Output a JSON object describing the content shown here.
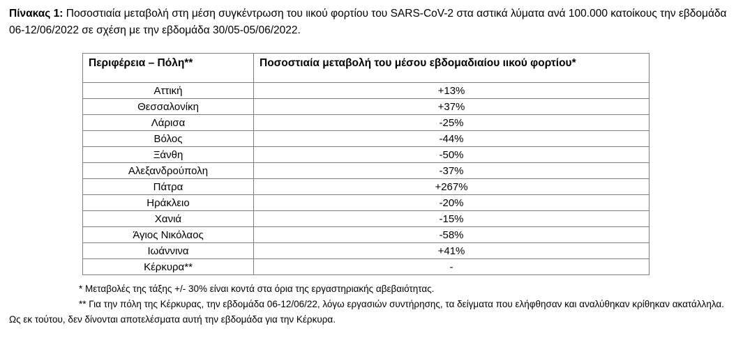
{
  "title": {
    "label": "Πίνακας 1:",
    "text": " Ποσοστιαία μεταβολή στη μέση συγκέντρωση του ιικού φορτίου του SARS-CoV-2 στα αστικά λύματα ανά 100.000 κατοίκους την εβδομάδα 06-12/06/2022 σε σχέση με την εβδομάδα 30/05-05/06/2022."
  },
  "table": {
    "headers": [
      "Περιφέρεια – Πόλη**",
      "Ποσοστιαία μεταβολή του μέσου εβδομαδιαίου ιικού φορτίου*"
    ],
    "rows": [
      {
        "city": "Αττική",
        "change": "+13%"
      },
      {
        "city": "Θεσσαλονίκη",
        "change": "+37%"
      },
      {
        "city": "Λάρισα",
        "change": "-25%"
      },
      {
        "city": "Βόλος",
        "change": "-44%"
      },
      {
        "city": "Ξάνθη",
        "change": "-50%"
      },
      {
        "city": "Αλεξανδρούπολη",
        "change": "-37%"
      },
      {
        "city": "Πάτρα",
        "change": "+267%"
      },
      {
        "city": "Ηράκλειο",
        "change": "-20%"
      },
      {
        "city": "Χανιά",
        "change": "-15%"
      },
      {
        "city": "Άγιος Νικόλαος",
        "change": "-58%"
      },
      {
        "city": "Ιωάννινα",
        "change": "+41%"
      },
      {
        "city": "Κέρκυρα**",
        "change": "-"
      }
    ]
  },
  "footnotes": [
    "* Μεταβολές της τάξης +/- 30% είναι κοντά στα όρια της εργαστηριακής αβεβαιότητας.",
    "** Για την πόλη της Κέρκυρας, την εβδομάδα 06-12/06/22, λόγω εργασιών συντήρησης, τα δείγματα που ελήφθησαν και αναλύθηκαν κρίθηκαν ακατάλληλα. Ως εκ τούτου, δεν δίνονται αποτελέσματα αυτή την εβδομάδα για την Κέρκυρα."
  ],
  "colors": {
    "background": "#ffffff",
    "text": "#000000",
    "table_border": "#7f7f7f"
  }
}
